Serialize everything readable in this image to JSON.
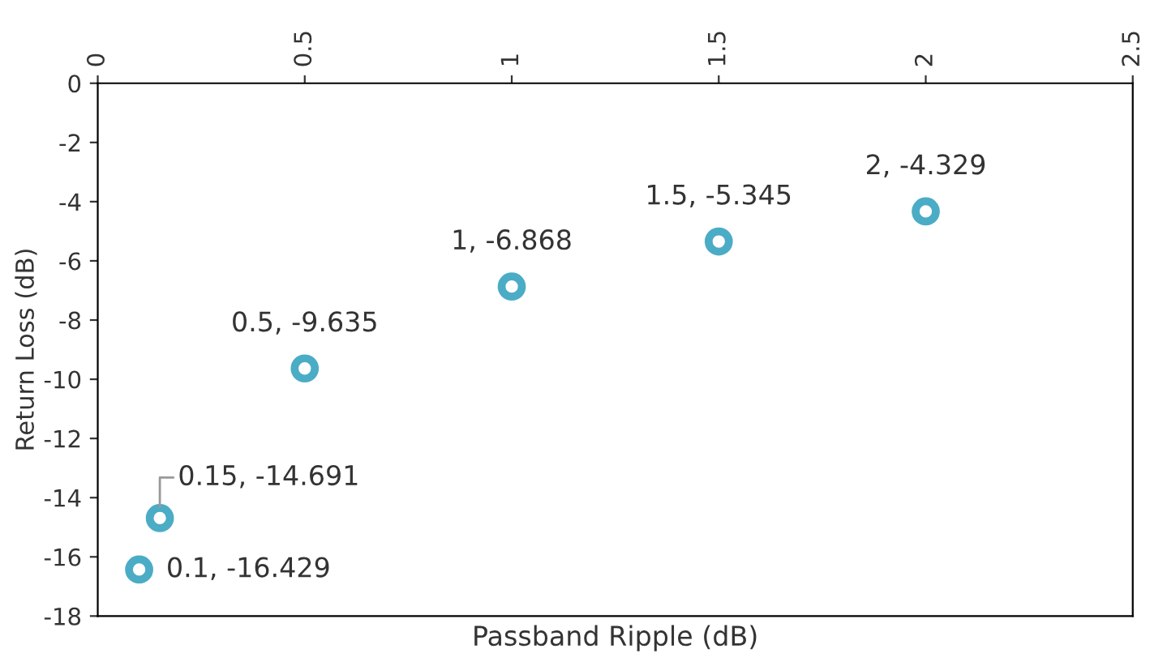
{
  "chart_data": {
    "type": "scatter",
    "xlabel": "Passband Ripple (dB)",
    "ylabel": "Return Loss (dB)",
    "x": [
      0.1,
      0.15,
      0.5,
      1,
      1.5,
      2
    ],
    "values": [
      -16.429,
      -14.691,
      -9.635,
      -6.868,
      -5.345,
      -4.329
    ],
    "color": "#4bacc6",
    "marker": "circle",
    "xlim": [
      0,
      2.5
    ],
    "xticks": [
      0,
      0.5,
      1,
      1.5,
      2,
      2.5
    ],
    "ylim": [
      -18,
      0
    ],
    "yticks": [
      -18,
      -16,
      -14,
      -12,
      -10,
      -8,
      -6,
      -4,
      -2,
      0
    ],
    "grid": false,
    "annotations": [
      {
        "text": "0.1, -16.429",
        "x": 0.1,
        "y": -16.429
      },
      {
        "text": "0.15, -14.691",
        "x": 0.15,
        "y": -14.691
      },
      {
        "text": "0.5, -9.635",
        "x": 0.5,
        "y": -9.635
      },
      {
        "text": "1, -6.868",
        "x": 1,
        "y": -6.868
      },
      {
        "text": "1.5, -5.345",
        "x": 1.5,
        "y": -5.345
      },
      {
        "text": "2, -4.329",
        "x": 2,
        "y": -4.329
      }
    ]
  }
}
